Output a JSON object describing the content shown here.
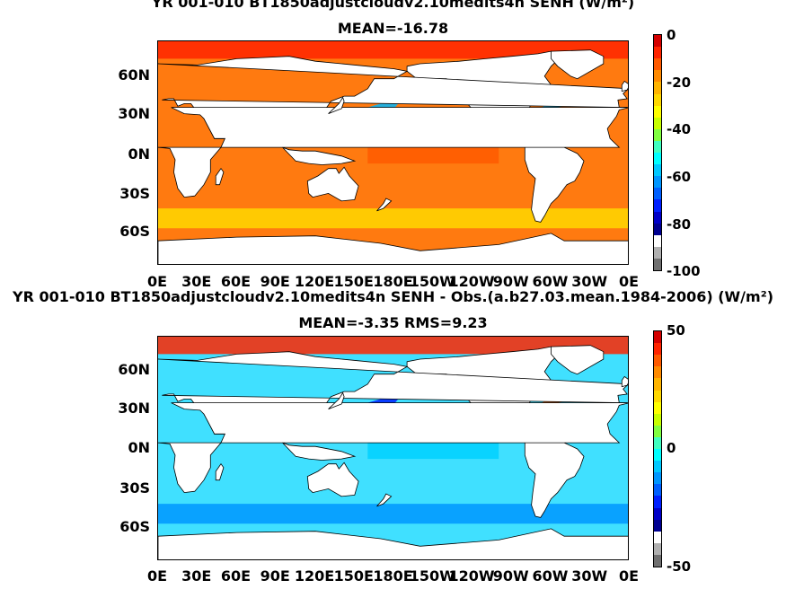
{
  "panels": [
    {
      "title": "YR 001-010 BT1850adjustcloudv2.10medits4n SENH (W/m²)",
      "subtitle": "MEAN=-16.78",
      "lat_labels": [
        "60N",
        "30N",
        "0N",
        "30S",
        "60S"
      ],
      "lon_labels": [
        "0E",
        "30E",
        "60E",
        "90E",
        "120E",
        "150E",
        "180E",
        "150W",
        "120W",
        "90W",
        "60W",
        "30W",
        "0E"
      ],
      "colorbar": {
        "ticks": [
          "0",
          "-20",
          "-40",
          "-60",
          "-80",
          "-100"
        ],
        "colors": [
          "#d40000",
          "#ff2400",
          "#ff5a00",
          "#ff8a00",
          "#ffb400",
          "#ffd800",
          "#ffff00",
          "#c8ff00",
          "#80ff40",
          "#40ffc0",
          "#00ffff",
          "#00c8ff",
          "#0096ff",
          "#0060ff",
          "#0020ff",
          "#0000c8",
          "#000090",
          "#ffffff",
          "#b0b0b0",
          "#707070"
        ],
        "range": [
          -100,
          0
        ]
      },
      "field": {
        "ocean": "#ff7a10",
        "highlights": [
          {
            "region": "arctic",
            "color": "#ff2400"
          },
          {
            "region": "kuroshio",
            "color": "#00b8ff"
          },
          {
            "region": "gulf-stream",
            "color": "#00b8ff"
          },
          {
            "region": "southern-ocean",
            "color": "#ffd800"
          },
          {
            "region": "tropics",
            "color": "#ff5a00"
          }
        ]
      }
    },
    {
      "title": "YR 001-010 BT1850adjustcloudv2.10medits4n SENH - Obs.(a.b27.03.mean.1984-2006) (W/m²)",
      "subtitle": "MEAN=-3.35 RMS=9.23",
      "lat_labels": [
        "60N",
        "30N",
        "0N",
        "30S",
        "60S"
      ],
      "lon_labels": [
        "0E",
        "30E",
        "60E",
        "90E",
        "120E",
        "150E",
        "180E",
        "150W",
        "120W",
        "90W",
        "60W",
        "30W",
        "0E"
      ],
      "colorbar": {
        "ticks": [
          "50",
          "0",
          "-50"
        ],
        "colors": [
          "#d40000",
          "#ff2400",
          "#ff5a00",
          "#ff8a00",
          "#ffb400",
          "#ffd800",
          "#ffff00",
          "#c8ff00",
          "#80ff40",
          "#40ffc0",
          "#00ffff",
          "#00c8ff",
          "#0096ff",
          "#0060ff",
          "#0020ff",
          "#0000c8",
          "#000090",
          "#ffffff",
          "#b0b0b0",
          "#707070"
        ],
        "range": [
          -50,
          50
        ]
      },
      "field": {
        "ocean": "#40e0ff",
        "highlights": [
          {
            "region": "arctic",
            "color": "#ff2400"
          },
          {
            "region": "kuroshio",
            "color": "#0020ff"
          },
          {
            "region": "gulf-stream",
            "color": "#ff5a00"
          },
          {
            "region": "southern-ocean",
            "color": "#0096ff"
          },
          {
            "region": "tropics",
            "color": "#00d0ff"
          }
        ]
      }
    }
  ],
  "land_color": "#ffffff",
  "missing_color": "#808080"
}
